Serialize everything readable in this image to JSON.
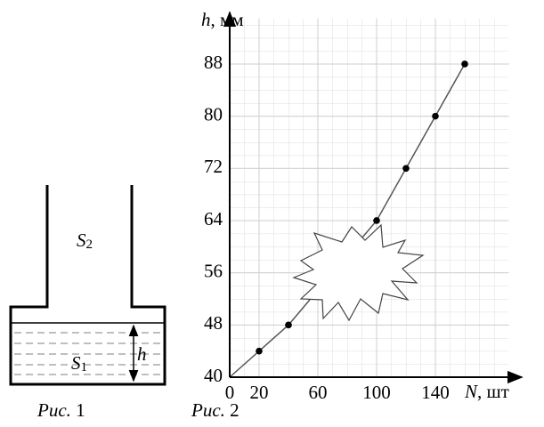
{
  "chart_data": {
    "type": "line",
    "ylabel": {
      "symbol": "h",
      "unit": ", мм"
    },
    "xlabel": {
      "symbol": "N",
      "unit": ", шт"
    },
    "xlim": [
      0,
      190
    ],
    "ylim": [
      40,
      95
    ],
    "xticks": [
      0,
      20,
      60,
      100,
      140
    ],
    "yticks": [
      40,
      48,
      56,
      64,
      72,
      80,
      88
    ],
    "grid": true,
    "series": [
      {
        "color": "#555555",
        "marker": false,
        "x": [
          0,
          40,
          100,
          160
        ],
        "values": [
          40,
          48,
          64,
          88
        ]
      },
      {
        "color": "#000000",
        "marker": true,
        "line": false,
        "x": [
          20,
          40,
          100,
          120,
          140,
          160
        ],
        "values": [
          44,
          48,
          64,
          72,
          80,
          88
        ]
      }
    ],
    "caption": {
      "prefix": "Рис.",
      "number": "2"
    }
  },
  "figure1": {
    "s2": {
      "symbol": "S",
      "index": "2"
    },
    "s1": {
      "symbol": "S",
      "index": "1"
    },
    "h": "h",
    "caption": {
      "prefix": "Рис.",
      "number": "1"
    }
  }
}
